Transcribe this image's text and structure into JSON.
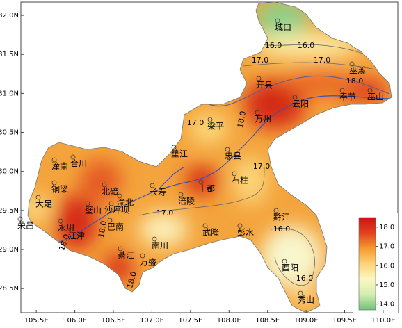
{
  "map": {
    "xlim": [
      105.3,
      110.19
    ],
    "ylim": [
      28.19,
      32.17
    ],
    "xticks": [
      {
        "value": 105.5,
        "label": "105.5E"
      },
      {
        "value": 106.0,
        "label": "106.0E"
      },
      {
        "value": 106.5,
        "label": "106.5E"
      },
      {
        "value": 107.0,
        "label": "107.0E"
      },
      {
        "value": 107.5,
        "label": "107.5E"
      },
      {
        "value": 108.0,
        "label": "108.0E"
      },
      {
        "value": 108.5,
        "label": "108.5E"
      },
      {
        "value": 109.0,
        "label": "109.0E"
      },
      {
        "value": 109.5,
        "label": "109.5E"
      },
      {
        "value": 110.0,
        "label": "110.0E"
      }
    ],
    "yticks": [
      {
        "value": 28.5,
        "label": "28.5N"
      },
      {
        "value": 29.0,
        "label": "29.0N"
      },
      {
        "value": 29.5,
        "label": "29.5N"
      },
      {
        "value": 30.0,
        "label": "30.0N"
      },
      {
        "value": 30.5,
        "label": "30.5N"
      },
      {
        "value": 31.0,
        "label": "31.0N"
      },
      {
        "value": 31.5,
        "label": "31.5N"
      },
      {
        "value": 32.0,
        "label": "32.0N"
      }
    ],
    "cities": [
      "城口",
      "巫溪",
      "开县",
      "云阳",
      "奉节",
      "巫山",
      "万州",
      "梁平",
      "垫江",
      "忠县",
      "石柱",
      "丰都",
      "长寿",
      "涪陵",
      "潼南",
      "合川",
      "铜梁",
      "北碚",
      "渝北",
      "大足",
      "璧山",
      "沙坪坝",
      "荣昌",
      "永川",
      "江津",
      "巴南",
      "南川",
      "武隆",
      "彭水",
      "黔江",
      "綦江",
      "万盛",
      "酉阳",
      "秀山"
    ],
    "contour_labels": [
      "16.0",
      "16.0",
      "17.0",
      "17.0",
      "18.0",
      "17.0",
      "18.0",
      "17.0",
      "17.0",
      "18.0",
      "18.0",
      "16.0",
      "16.0",
      "18.0"
    ],
    "colorbar": {
      "lim": [
        13.7,
        18.5
      ],
      "ticks": [
        {
          "value": 14,
          "label": "14.0"
        },
        {
          "value": 15,
          "label": "15.0"
        },
        {
          "value": 16,
          "label": "16.0"
        },
        {
          "value": 17,
          "label": "17.0"
        },
        {
          "value": 18,
          "label": "18.0"
        }
      ],
      "colors": [
        "#72c27c",
        "#d3edb0",
        "#fbf7c2",
        "#fdd27a",
        "#f59a2e",
        "#e3401f",
        "#c9150f"
      ]
    }
  }
}
